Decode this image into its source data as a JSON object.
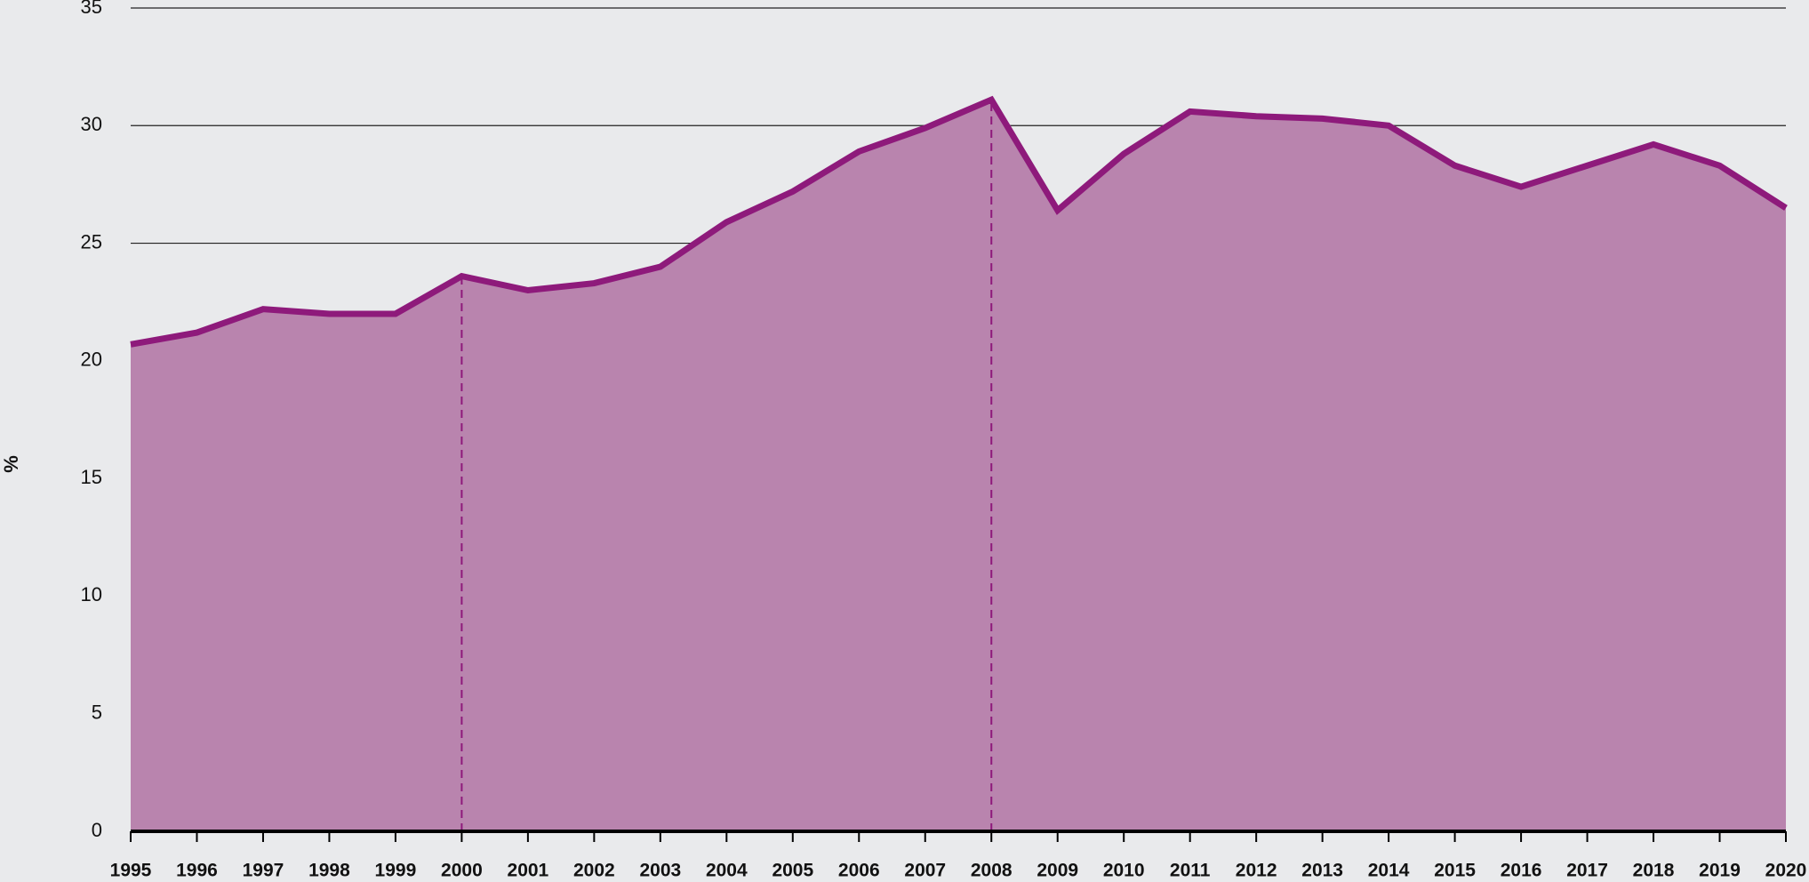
{
  "chart_data": {
    "type": "area",
    "ylabel": "%",
    "x": [
      1995,
      1996,
      1997,
      1998,
      1999,
      2000,
      2001,
      2002,
      2003,
      2004,
      2005,
      2006,
      2007,
      2008,
      2009,
      2010,
      2011,
      2012,
      2013,
      2014,
      2015,
      2016,
      2017,
      2018,
      2019,
      2020
    ],
    "values": [
      20.7,
      21.2,
      22.2,
      22.0,
      22.0,
      23.6,
      23.0,
      23.3,
      24.0,
      25.9,
      27.2,
      28.9,
      29.9,
      31.1,
      26.4,
      28.8,
      30.6,
      30.4,
      30.3,
      30.0,
      28.3,
      27.4,
      28.3,
      29.2,
      28.3,
      26.5
    ],
    "color": "#8e1a7b",
    "area_color": "#b984ae",
    "xlim": [
      1995,
      2020
    ],
    "xticks": [
      1995,
      1996,
      1997,
      1998,
      1999,
      2000,
      2001,
      2002,
      2003,
      2004,
      2005,
      2006,
      2007,
      2008,
      2009,
      2010,
      2011,
      2012,
      2013,
      2014,
      2015,
      2016,
      2017,
      2018,
      2019,
      2020
    ],
    "ylim": [
      0,
      35
    ],
    "yticks": [
      0,
      5,
      10,
      15,
      20,
      25,
      30,
      35
    ],
    "grid": true,
    "reference_lines_x": [
      2000,
      2008
    ]
  }
}
